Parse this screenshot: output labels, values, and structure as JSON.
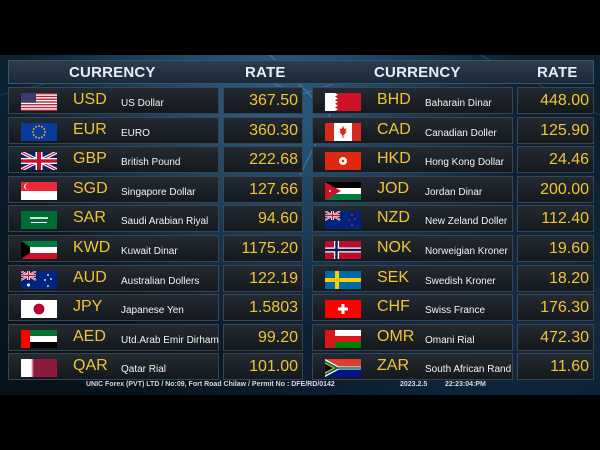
{
  "header": {
    "currency_left": "CURRENCY",
    "rate_left": "RATE",
    "currency_right": "CURRENCY",
    "rate_right": "RATE"
  },
  "left_rows": [
    {
      "code": "USD",
      "name": "US Dollar",
      "rate": "367.50",
      "flag": "flag-us-icon"
    },
    {
      "code": "EUR",
      "name": "EURO",
      "rate": "360.30",
      "flag": "flag-eu-icon"
    },
    {
      "code": "GBP",
      "name": "British Pound",
      "rate": "222.68",
      "flag": "flag-gb-icon"
    },
    {
      "code": "SGD",
      "name": "Singapore Dollar",
      "rate": "127.66",
      "flag": "flag-sg-icon"
    },
    {
      "code": "SAR",
      "name": "Saudi Arabian Riyal",
      "rate": "94.60",
      "flag": "flag-sa-icon"
    },
    {
      "code": "KWD",
      "name": "Kuwait Dinar",
      "rate": "1175.20",
      "flag": "flag-kw-icon"
    },
    {
      "code": "AUD",
      "name": "Australian Dollers",
      "rate": "122.19",
      "flag": "flag-au-icon"
    },
    {
      "code": "JPY",
      "name": "Japanese Yen",
      "rate": "1.5803",
      "flag": "flag-jp-icon"
    },
    {
      "code": "AED",
      "name": "Utd.Arab Emir Dirham",
      "rate": "99.20",
      "flag": "flag-ae-icon"
    },
    {
      "code": "QAR",
      "name": "Qatar Rial",
      "rate": "101.00",
      "flag": "flag-qa-icon"
    }
  ],
  "right_rows": [
    {
      "code": "BHD",
      "name": "Baharain Dinar",
      "rate": "448.00",
      "flag": "flag-bh-icon"
    },
    {
      "code": "CAD",
      "name": "Canadian Doller",
      "rate": "125.90",
      "flag": "flag-ca-icon"
    },
    {
      "code": "HKD",
      "name": "Hong Kong Dollar",
      "rate": "24.46",
      "flag": "flag-hk-icon"
    },
    {
      "code": "JOD",
      "name": "Jordan Dinar",
      "rate": "200.00",
      "flag": "flag-jo-icon"
    },
    {
      "code": "NZD",
      "name": "New Zeland Doller",
      "rate": "112.40",
      "flag": "flag-nz-icon"
    },
    {
      "code": "NOK",
      "name": "Norweigian Kroner",
      "rate": "19.60",
      "flag": "flag-no-icon"
    },
    {
      "code": "SEK",
      "name": "Swedish Kroner",
      "rate": "18.20",
      "flag": "flag-se-icon"
    },
    {
      "code": "CHF",
      "name": "Swiss France",
      "rate": "176.30",
      "flag": "flag-ch-icon"
    },
    {
      "code": "OMR",
      "name": "Omani Rial",
      "rate": "472.30",
      "flag": "flag-om-icon"
    },
    {
      "code": "ZAR",
      "name": "South African Rand",
      "rate": "11.60",
      "flag": "flag-za-icon"
    }
  ],
  "footer": {
    "company": "UNIC Forex (PVT) LTD  /  No:09, Fort Road Chilaw  /  Permit No :  DFE/RD/0142",
    "date": "2023.2.5",
    "time": "22:23:04:PM"
  },
  "colors": {
    "rate_text": "#f2c431",
    "code_text": "#f2c431",
    "name_text": "#f4f4f4",
    "header_text": "#e8eef5"
  }
}
